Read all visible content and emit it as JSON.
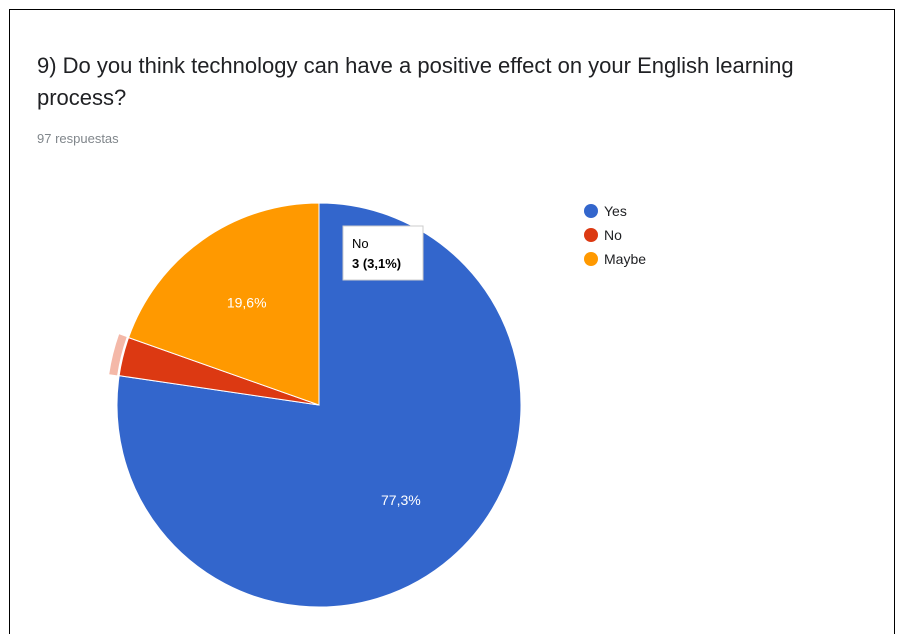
{
  "question": {
    "title": "9) Do you think technology can have a positive effect on your English learning process?",
    "responses": "97 respuestas"
  },
  "colors": {
    "Yes": "#3366cc",
    "No": "#dc3912",
    "Maybe": "#ff9900",
    "highlight": "#f4b8a8"
  },
  "chart_data": {
    "type": "pie",
    "total": 97,
    "categories": [
      "Yes",
      "No",
      "Maybe"
    ],
    "values": [
      75,
      3,
      19
    ],
    "percent_labels": [
      "77,3%",
      "",
      "19,6%"
    ],
    "legend": {
      "placement": "right",
      "entries": [
        "Yes",
        "No",
        "Maybe"
      ]
    },
    "tooltip": {
      "category": "No",
      "text": "3 (3,1%)"
    }
  }
}
